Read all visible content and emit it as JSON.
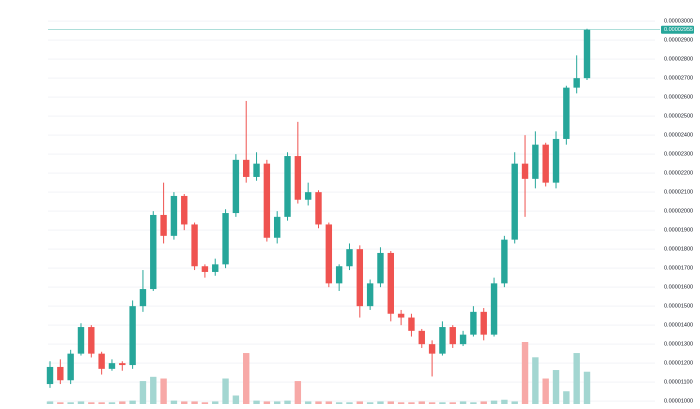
{
  "chart_data": {
    "type": "candlestick",
    "open": [
      1.09e-05,
      1.18e-05,
      1.11e-05,
      1.25e-05,
      1.39e-05,
      1.25e-05,
      1.17e-05,
      1.2e-05,
      1.19e-05,
      1.5e-05,
      1.59e-05,
      1.98e-05,
      1.87e-05,
      2.08e-05,
      1.93e-05,
      1.71e-05,
      1.68e-05,
      1.72e-05,
      1.99e-05,
      2.27e-05,
      2.18e-05,
      2.25e-05,
      1.86e-05,
      1.97e-05,
      2.29e-05,
      2.06e-05,
      2.1e-05,
      1.93e-05,
      1.62e-05,
      1.71e-05,
      1.8e-05,
      1.5e-05,
      1.62e-05,
      1.78e-05,
      1.46e-05,
      1.44e-05,
      1.37e-05,
      1.3e-05,
      1.25e-05,
      1.39e-05,
      1.3e-05,
      1.35e-05,
      1.47e-05,
      1.35e-05,
      1.62e-05,
      1.85e-05,
      2.25e-05,
      2.17e-05,
      2.35e-05,
      2.15e-05,
      2.38e-05,
      2.65e-05,
      2.7e-05
    ],
    "high": [
      1.21e-05,
      1.22e-05,
      1.27e-05,
      1.41e-05,
      1.4e-05,
      1.26e-05,
      1.22e-05,
      1.21e-05,
      1.53e-05,
      1.69e-05,
      2e-05,
      2.15e-05,
      2.1e-05,
      2.09e-05,
      1.94e-05,
      1.72e-05,
      1.75e-05,
      2.01e-05,
      2.3e-05,
      2.58e-05,
      2.31e-05,
      2.27e-05,
      2e-05,
      2.31e-05,
      2.47e-05,
      2.15e-05,
      2.11e-05,
      1.94e-05,
      1.72e-05,
      1.83e-05,
      1.82e-05,
      1.64e-05,
      1.81e-05,
      1.79e-05,
      1.48e-05,
      1.46e-05,
      1.38e-05,
      1.32e-05,
      1.42e-05,
      1.4e-05,
      1.37e-05,
      1.5e-05,
      1.49e-05,
      1.65e-05,
      1.87e-05,
      2.31e-05,
      2.4e-05,
      2.42e-05,
      2.36e-05,
      2.42e-05,
      2.66e-05,
      2.82e-05,
      2.96e-05
    ],
    "low": [
      1.07e-05,
      1.09e-05,
      1.09e-05,
      1.24e-05,
      1.23e-05,
      1.14e-05,
      1.16e-05,
      1.16e-05,
      1.17e-05,
      1.47e-05,
      1.58e-05,
      1.83e-05,
      1.85e-05,
      1.9e-05,
      1.69e-05,
      1.65e-05,
      1.66e-05,
      1.7e-05,
      1.97e-05,
      2.15e-05,
      2.16e-05,
      1.84e-05,
      1.83e-05,
      1.95e-05,
      2.04e-05,
      2.03e-05,
      1.91e-05,
      1.6e-05,
      1.58e-05,
      1.69e-05,
      1.44e-05,
      1.48e-05,
      1.6e-05,
      1.42e-05,
      1.4e-05,
      1.34e-05,
      1.28e-05,
      1.13e-05,
      1.24e-05,
      1.28e-05,
      1.29e-05,
      1.34e-05,
      1.32e-05,
      1.34e-05,
      1.6e-05,
      1.83e-05,
      1.97e-05,
      2.12e-05,
      2.13e-05,
      2.12e-05,
      2.35e-05,
      2.62e-05,
      2.69e-05
    ],
    "close": [
      1.18e-05,
      1.11e-05,
      1.25e-05,
      1.39e-05,
      1.25e-05,
      1.17e-05,
      1.2e-05,
      1.19e-05,
      1.5e-05,
      1.59e-05,
      1.98e-05,
      1.87e-05,
      2.08e-05,
      1.93e-05,
      1.71e-05,
      1.68e-05,
      1.72e-05,
      1.99e-05,
      2.27e-05,
      2.18e-05,
      2.25e-05,
      1.86e-05,
      1.97e-05,
      2.29e-05,
      2.06e-05,
      2.1e-05,
      1.93e-05,
      1.62e-05,
      1.71e-05,
      1.8e-05,
      1.5e-05,
      1.62e-05,
      1.78e-05,
      1.46e-05,
      1.44e-05,
      1.37e-05,
      1.3e-05,
      1.25e-05,
      1.39e-05,
      1.3e-05,
      1.35e-05,
      1.47e-05,
      1.35e-05,
      1.62e-05,
      1.85e-05,
      2.25e-05,
      2.17e-05,
      2.35e-05,
      2.15e-05,
      2.38e-05,
      2.65e-05,
      2.7e-05,
      2.955e-05
    ],
    "volume": [
      3,
      2,
      2,
      3,
      2,
      2,
      2,
      3,
      4,
      27,
      32,
      30,
      4,
      3,
      3,
      2,
      3,
      30,
      10,
      60,
      4,
      3,
      3,
      4,
      27,
      3,
      3,
      3,
      2,
      2,
      3,
      2,
      3,
      3,
      2,
      2,
      3,
      2,
      2,
      2,
      3,
      2,
      3,
      4,
      5,
      3,
      73,
      55,
      30,
      40,
      15,
      60,
      38
    ],
    "up_color": "#26a69a",
    "down_color": "#ef5350",
    "volume_up_color": "#a3d6d1",
    "volume_down_color": "#f7a9a7",
    "ylim": [
      9.85e-06,
      3.085e-05
    ],
    "yticks": [
      {
        "value": 1e-05,
        "label": "0.00001000"
      },
      {
        "value": 1.1e-05,
        "label": "0.00001100"
      },
      {
        "value": 1.2e-05,
        "label": "0.00001200"
      },
      {
        "value": 1.3e-05,
        "label": "0.00001300"
      },
      {
        "value": 1.4e-05,
        "label": "0.00001400"
      },
      {
        "value": 1.5e-05,
        "label": "0.00001500"
      },
      {
        "value": 1.6e-05,
        "label": "0.00001600"
      },
      {
        "value": 1.7e-05,
        "label": "0.00001700"
      },
      {
        "value": 1.8e-05,
        "label": "0.00001800"
      },
      {
        "value": 1.9e-05,
        "label": "0.00001900"
      },
      {
        "value": 2e-05,
        "label": "0.00002000"
      },
      {
        "value": 2.1e-05,
        "label": "0.00002100"
      },
      {
        "value": 2.2e-05,
        "label": "0.00002200"
      },
      {
        "value": 2.3e-05,
        "label": "0.00002300"
      },
      {
        "value": 2.4e-05,
        "label": "0.00002400"
      },
      {
        "value": 2.5e-05,
        "label": "0.00002500"
      },
      {
        "value": 2.6e-05,
        "label": "0.00002600"
      },
      {
        "value": 2.7e-05,
        "label": "0.00002700"
      },
      {
        "value": 2.8e-05,
        "label": "0.00002800"
      },
      {
        "value": 2.9e-05,
        "label": "0.00002900"
      },
      {
        "value": 3e-05,
        "label": "0.00003000"
      }
    ],
    "grid": true
  }
}
